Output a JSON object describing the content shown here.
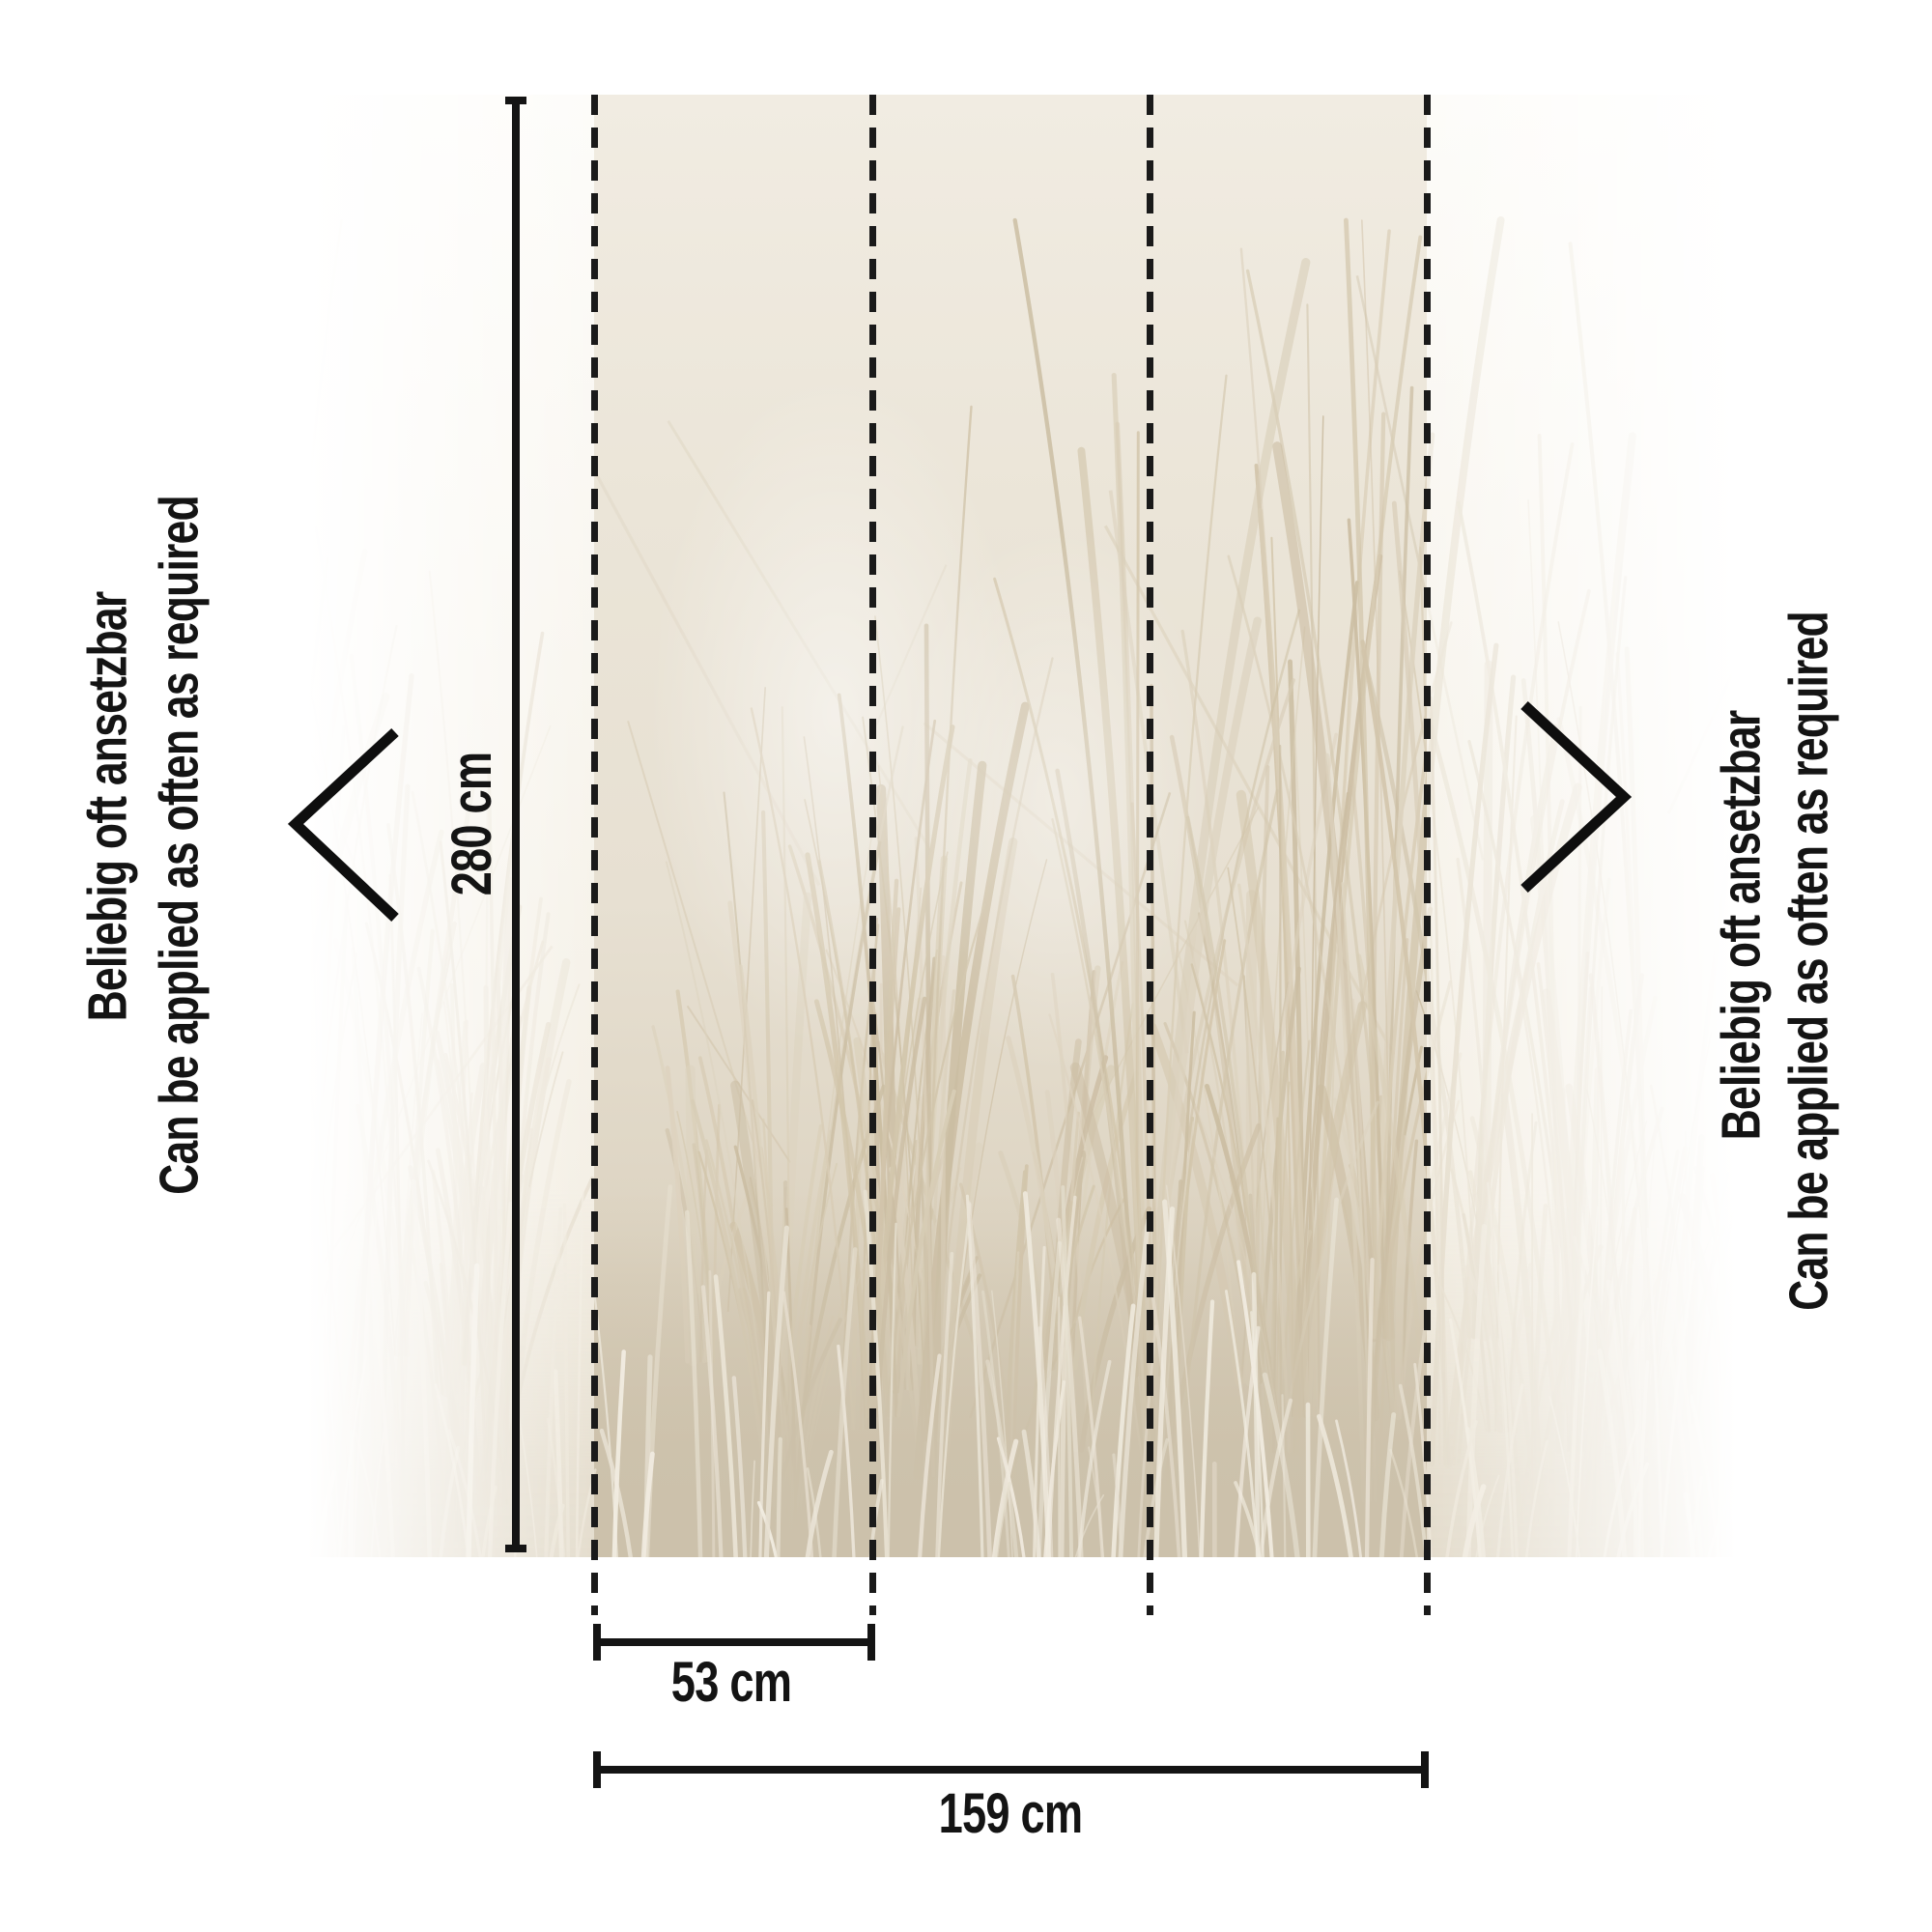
{
  "diagram": {
    "title_hint": "wallpaper strip layout diagram",
    "side_note_de": "Beliebig oft ansetzbar",
    "side_note_en": "Can be applied as often as required",
    "dim_height_label": "280 cm",
    "dim_strip_label": "53 cm",
    "dim_total_label": "159 cm"
  },
  "icons": {
    "chevron_left": "chevron-left-icon",
    "chevron_right": "chevron-right-icon"
  },
  "colors": {
    "page": "#ffffff",
    "ink": "#141414",
    "dash": "#1a1a1a",
    "band": "#ccc1ab",
    "blade1": "#d8cdb6",
    "blade2": "#d2c5ab",
    "blade3": "#cbbda2",
    "blade4": "#ddd3bf",
    "light1": "#f1ece1",
    "light2": "#ece6d9",
    "light3": "#e7e0d1"
  }
}
